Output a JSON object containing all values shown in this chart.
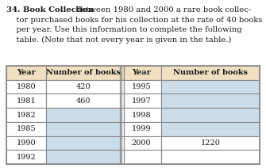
{
  "header_bg": "#f0dfc0",
  "blank_bg": "#ccdce8",
  "left_years": [
    "1980",
    "1981",
    "1982",
    "1985",
    "1990",
    "1992"
  ],
  "left_values": [
    "420",
    "460",
    "",
    "",
    "",
    ""
  ],
  "right_years": [
    "1995",
    "1997",
    "1998",
    "1999",
    "2000",
    ""
  ],
  "right_values": [
    "",
    "",
    "",
    "",
    "1220",
    ""
  ],
  "col_header": [
    "Year",
    "Number of books",
    "Year",
    "Number of books"
  ],
  "text_color": "#1a1a1a",
  "border_color": "#888888",
  "font_size_para": 7.2,
  "font_size_table": 7.0
}
